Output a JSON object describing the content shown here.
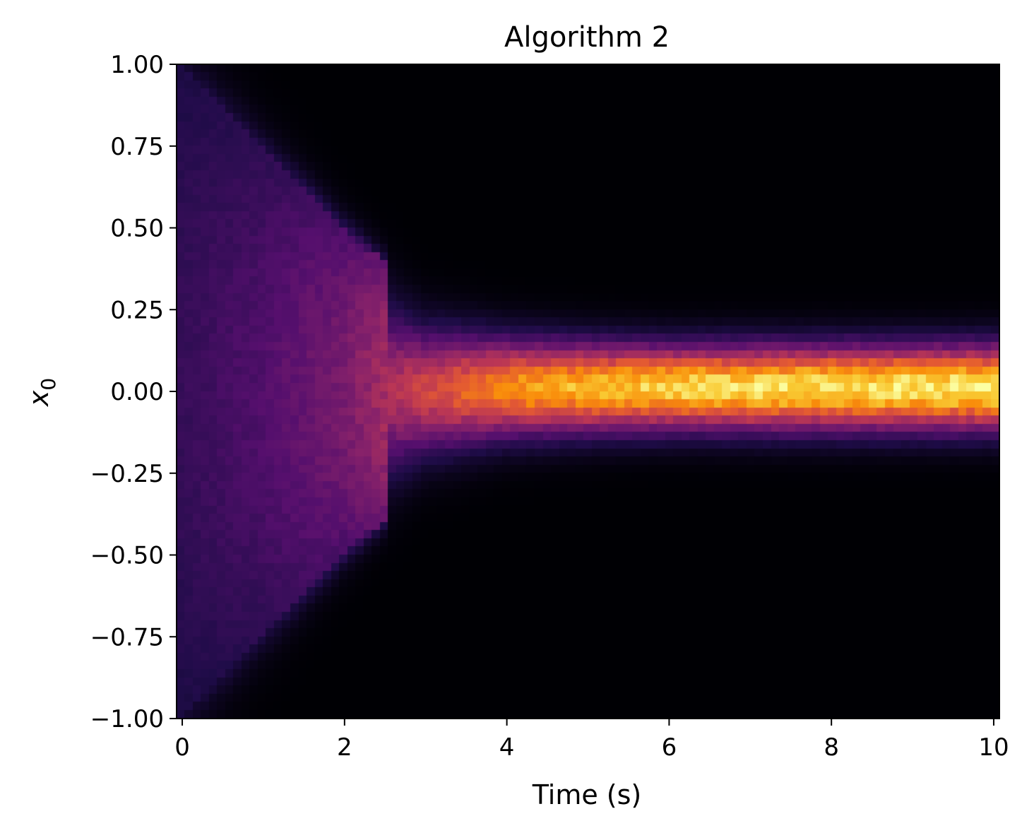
{
  "chart_data": {
    "type": "heatmap",
    "title": "Algorithm 2",
    "xlabel": "Time (s)",
    "ylabel": "x",
    "ylabel_subscript": "0",
    "xlim": [
      -0.07,
      10.07
    ],
    "ylim": [
      -1.0,
      1.0
    ],
    "x_ticks": [
      {
        "value": 0,
        "label": "0"
      },
      {
        "value": 2,
        "label": "2"
      },
      {
        "value": 4,
        "label": "4"
      },
      {
        "value": 6,
        "label": "6"
      },
      {
        "value": 8,
        "label": "8"
      },
      {
        "value": 10,
        "label": "10"
      }
    ],
    "y_ticks": [
      {
        "value": 1.0,
        "label": "1.00"
      },
      {
        "value": 0.75,
        "label": "0.75"
      },
      {
        "value": 0.5,
        "label": "0.50"
      },
      {
        "value": 0.25,
        "label": "0.25"
      },
      {
        "value": 0.0,
        "label": "0.00"
      },
      {
        "value": -0.25,
        "label": "−0.25"
      },
      {
        "value": -0.5,
        "label": "−0.50"
      },
      {
        "value": -0.75,
        "label": "−0.75"
      },
      {
        "value": -1.0,
        "label": "−1.00"
      }
    ],
    "colormap": "inferno",
    "grid": false,
    "legend": "none",
    "density_profile": {
      "time": [
        0,
        1,
        2,
        3,
        4,
        5,
        6,
        7,
        8,
        9,
        10
      ],
      "center": [
        0,
        0,
        0,
        0,
        0.01,
        0.01,
        0.01,
        0.01,
        0.01,
        0.01,
        0.01
      ],
      "half_width": [
        1.0,
        0.75,
        0.5,
        0.28,
        0.22,
        0.2,
        0.19,
        0.19,
        0.19,
        0.19,
        0.19
      ],
      "peak_intensity": [
        0.18,
        0.24,
        0.34,
        0.55,
        0.75,
        0.85,
        0.9,
        0.92,
        0.93,
        0.94,
        0.95
      ]
    }
  }
}
